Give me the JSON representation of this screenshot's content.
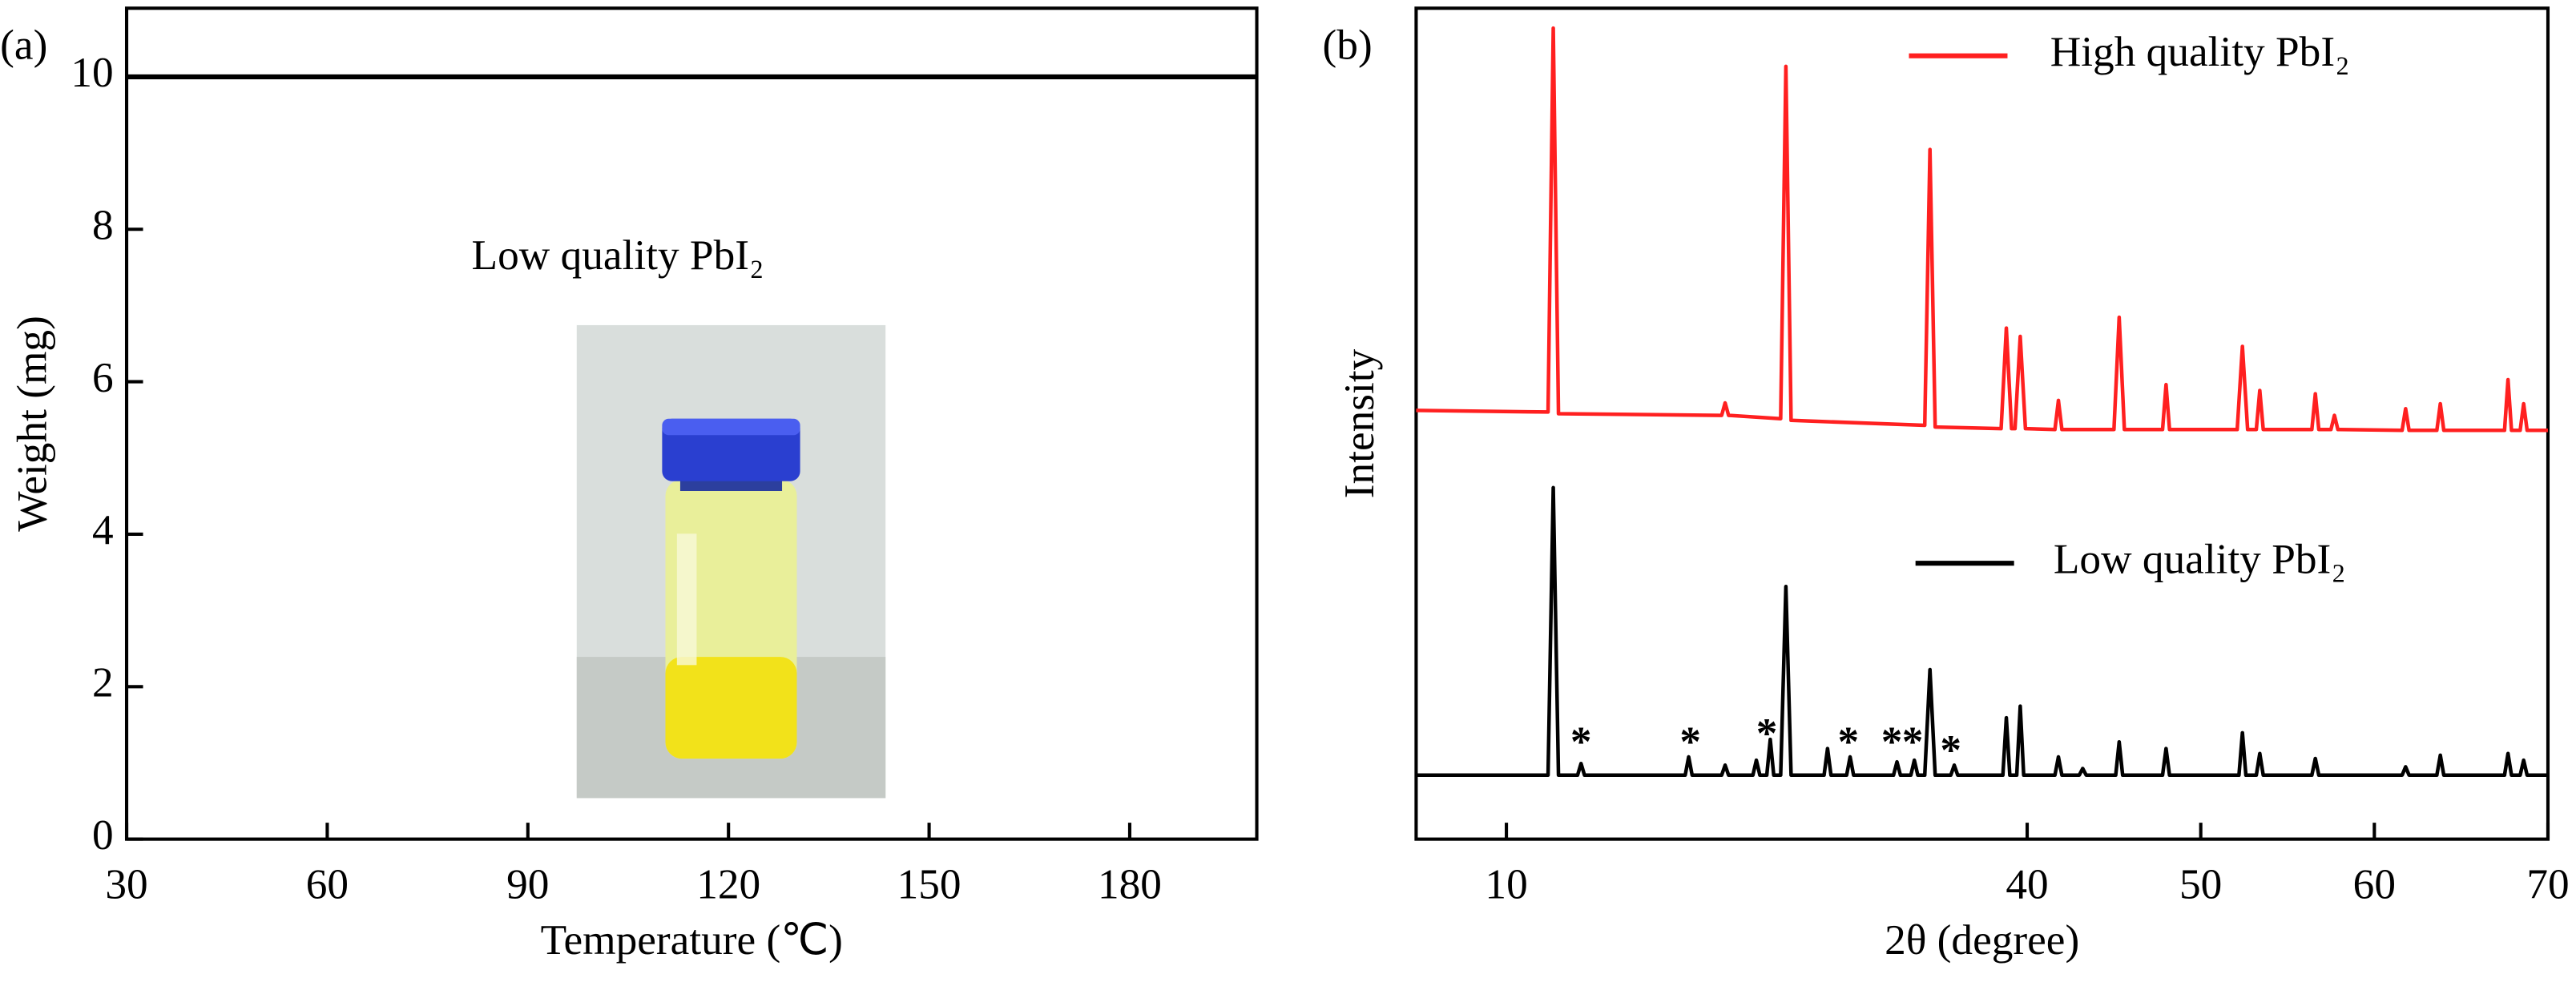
{
  "chart_data": [
    {
      "type": "line",
      "panel_label": "(a)",
      "x_label": "Temperature (℃)",
      "y_label": "Weight (mg)",
      "annotation": "Low quality PbI₂",
      "xlim": [
        30,
        199
      ],
      "ylim": [
        0,
        10.9
      ],
      "xticks": [
        30,
        60,
        90,
        120,
        150,
        180
      ],
      "yticks": [
        0,
        2,
        4,
        6,
        8,
        10
      ],
      "series": [
        {
          "color": "#000000",
          "x": [
            30,
            199
          ],
          "values": [
            10,
            10
          ]
        }
      ]
    },
    {
      "type": "line",
      "panel_label": "(b)",
      "x_label": "2θ (degree)",
      "y_label": "Intensity",
      "xlim": [
        4.8,
        70
      ],
      "ylim": [
        0,
        100
      ],
      "xticks": [
        10,
        40,
        50,
        60,
        70
      ],
      "series": [
        {
          "name": "High quality PbI₂",
          "color": "#ff2020",
          "x": [
            4.8,
            12.4,
            12.7,
            13.0,
            22.4,
            22.6,
            22.8,
            25.8,
            26.1,
            26.4,
            34.1,
            34.4,
            34.7,
            38.5,
            38.8,
            39.1,
            39.3,
            39.6,
            39.9,
            41.6,
            41.8,
            42.0,
            45.0,
            45.3,
            45.6,
            47.8,
            48.0,
            48.2,
            52.1,
            52.4,
            52.7,
            53.2,
            53.4,
            53.6,
            56.4,
            56.6,
            56.8,
            57.5,
            57.7,
            57.9,
            61.6,
            61.8,
            62.0,
            63.6,
            63.8,
            64.0,
            67.5,
            67.7,
            67.9,
            68.4,
            68.6,
            68.8,
            70
          ],
          "values": [
            51.6,
            51.4,
            97.6,
            51.2,
            51,
            52.5,
            51,
            50.6,
            93,
            50.4,
            49.8,
            83,
            49.6,
            49.4,
            61.5,
            49.4,
            49.4,
            60.5,
            49.4,
            49.3,
            52.8,
            49.3,
            49.3,
            62.8,
            49.3,
            49.3,
            54.7,
            49.3,
            49.3,
            59.3,
            49.3,
            49.3,
            54,
            49.3,
            49.3,
            53.6,
            49.3,
            49.3,
            51,
            49.3,
            49.2,
            51.8,
            49.2,
            49.2,
            52.4,
            49.2,
            49.2,
            55.3,
            49.2,
            49.2,
            52.4,
            49.2,
            49.2
          ]
        },
        {
          "name": "Low quality PbI₂",
          "color": "#000000",
          "x": [
            4.8,
            12.4,
            12.7,
            13.0,
            14.1,
            14.3,
            14.5,
            20.3,
            20.5,
            20.7,
            22.4,
            22.6,
            22.8,
            24.2,
            24.4,
            24.6,
            25.0,
            25.2,
            25.4,
            25.8,
            26.1,
            26.4,
            28.3,
            28.5,
            28.7,
            29.6,
            29.8,
            30.0,
            32.3,
            32.5,
            32.7,
            33.3,
            33.5,
            33.7,
            34.1,
            34.4,
            34.7,
            35.6,
            35.8,
            36.0,
            38.6,
            38.8,
            39.0,
            39.4,
            39.6,
            39.8,
            41.6,
            41.8,
            42.0,
            43.0,
            43.2,
            43.4,
            45.1,
            45.3,
            45.5,
            47.8,
            48.0,
            48.2,
            52.2,
            52.4,
            52.6,
            53.2,
            53.4,
            53.6,
            56.4,
            56.6,
            56.8,
            61.6,
            61.8,
            62.0,
            63.6,
            63.8,
            64.0,
            67.5,
            67.7,
            67.9,
            68.4,
            68.6,
            68.8,
            70
          ],
          "values": [
            7.7,
            7.7,
            42.3,
            7.7,
            7.7,
            9.1,
            7.7,
            7.7,
            9.9,
            7.7,
            7.7,
            8.9,
            7.7,
            7.7,
            9.5,
            7.7,
            7.7,
            12,
            7.7,
            7.7,
            30.4,
            7.7,
            7.7,
            10.9,
            7.7,
            7.7,
            9.9,
            7.7,
            7.7,
            9.3,
            7.7,
            7.7,
            9.5,
            7.7,
            7.7,
            20.4,
            7.7,
            7.7,
            8.9,
            7.7,
            7.7,
            14.6,
            7.7,
            7.7,
            16,
            7.7,
            7.7,
            9.9,
            7.7,
            7.7,
            8.5,
            7.7,
            7.7,
            11.7,
            7.7,
            7.7,
            10.9,
            7.7,
            7.7,
            12.8,
            7.7,
            7.7,
            10.3,
            7.7,
            7.7,
            9.7,
            7.7,
            7.7,
            8.7,
            7.7,
            7.7,
            10.1,
            7.7,
            7.7,
            10.3,
            7.7,
            7.7,
            9.5,
            7.7,
            7.7
          ]
        }
      ],
      "annotations": [
        {
          "text": "*",
          "x": 14.3,
          "y": 12
        },
        {
          "text": "*",
          "x": 20.6,
          "y": 12
        },
        {
          "text": "*",
          "x": 25.0,
          "y": 13
        },
        {
          "text": "*",
          "x": 29.7,
          "y": 12
        },
        {
          "text": "*",
          "x": 32.2,
          "y": 12
        },
        {
          "text": "*",
          "x": 33.4,
          "y": 12
        },
        {
          "text": "*",
          "x": 35.6,
          "y": 11
        }
      ]
    }
  ]
}
